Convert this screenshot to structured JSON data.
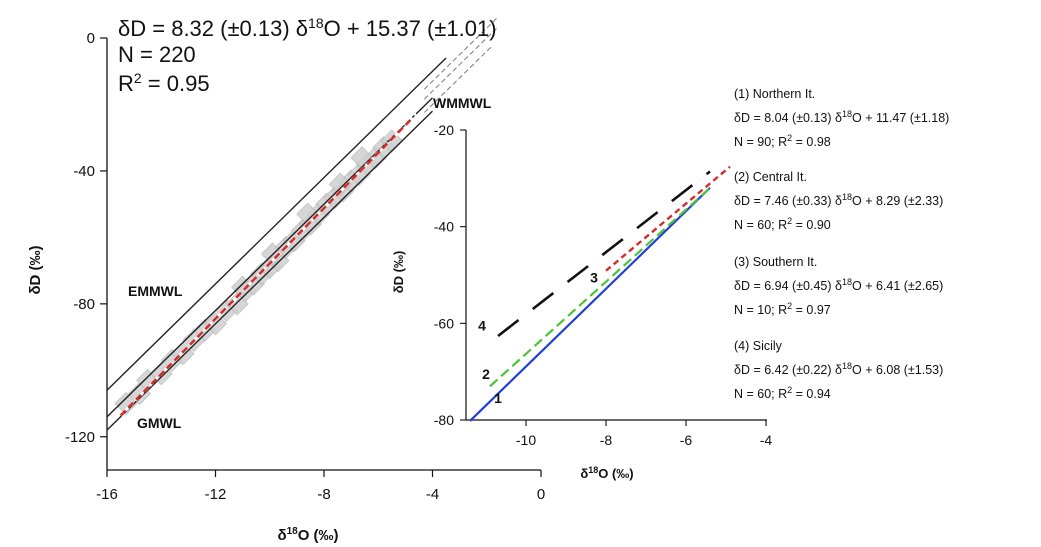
{
  "main": {
    "equation": "δD = 8.32 (±0.13) δ18O + 15.37 (±1.01)",
    "n": "N = 220",
    "r2": "R2 = 0.95",
    "line_labels": {
      "emmwl": "EMMWL",
      "gmwl": "GMWL",
      "wmmwl": "WMMWL"
    },
    "xlabel": "δ18O (‰)",
    "ylabel": "δD (‰)",
    "xticks": [
      "-16",
      "-12",
      "-8",
      "-4",
      "0"
    ],
    "yticks": [
      "0",
      "-40",
      "-80",
      "-120"
    ]
  },
  "inset": {
    "xlabel": "δ18O (‰)",
    "ylabel": "δD (‰)",
    "xticks": [
      "-10",
      "-8",
      "-6",
      "-4"
    ],
    "yticks": [
      "-20",
      "-40",
      "-60",
      "-80"
    ],
    "line_numbers": [
      "1",
      "2",
      "3",
      "4"
    ]
  },
  "legend": [
    {
      "title": "(1) Northern It.",
      "eq": "δD = 8.04 (±0.13) δ18O + 11.47 (±1.18)",
      "stats": "N = 90; R2 = 0.98"
    },
    {
      "title": "(2) Central It.",
      "eq": "δD = 7.46 (±0.33) δ18O + 8.29 (±2.33)",
      "stats": "N = 60; R2 = 0.90"
    },
    {
      "title": "(3) Southern It.",
      "eq": "δD = 6.94 (±0.45) δ18O + 6.41 (±2.65)",
      "stats": "N = 10; R2 = 0.97"
    },
    {
      "title": "(4) Sicily",
      "eq": "δD = 6.42 (±0.22) δ18O + 6.08 (±1.53)",
      "stats": "N = 60; R2 = 0.94"
    }
  ],
  "colors": {
    "northern": "#1f3fd6",
    "central": "#4cc23a",
    "southern": "#d62b2b",
    "sicily": "#111111",
    "points": "#cfcfcf",
    "lines": "#222222"
  },
  "chart_data": [
    {
      "type": "scatter",
      "xlabel": "δ18O (‰)",
      "ylabel": "δD (‰)",
      "xlim": [
        -16,
        0
      ],
      "ylim": [
        -130,
        0
      ],
      "grid": false,
      "series": [
        {
          "name": "",
          "x": [
            -15.3,
            -14.8,
            -14.5,
            -14.0,
            -13.6,
            -13.2,
            -12.8,
            -12.4,
            -12.0,
            -11.6,
            -11.2,
            -10.9,
            -10.6,
            -10.3,
            -10.0,
            -9.7,
            -9.4,
            -9.1,
            -8.8,
            -8.5,
            -8.2,
            -7.9,
            -7.6,
            -7.3,
            -7.0,
            -6.7,
            -6.4,
            -6.1,
            -5.8,
            -5.5,
            -11.0,
            -9.9,
            -8.6,
            -7.4,
            -6.6
          ],
          "y": [
            -110,
            -107,
            -103,
            -101,
            -97,
            -95,
            -91,
            -88,
            -86,
            -82,
            -80,
            -76,
            -74,
            -71,
            -69,
            -67,
            -63,
            -61,
            -58,
            -56,
            -53,
            -50,
            -48,
            -46,
            -43,
            -41,
            -38,
            -36,
            -33,
            -31,
            -75,
            -65,
            -53,
            -44,
            -36
          ]
        }
      ],
      "lines": [
        {
          "name": "EMMWL",
          "slope": 8,
          "intercept": 22,
          "x": [
            -16,
            -4
          ]
        },
        {
          "name": "GMWL",
          "slope": 8,
          "intercept": 10,
          "x": [
            -16,
            -4
          ]
        },
        {
          "name": "WMMWL",
          "slope": 8,
          "intercept": 14,
          "x": [
            -16,
            -4
          ]
        },
        {
          "name": "",
          "slope": 8.32,
          "intercept": 15.37,
          "x": [
            -15.5,
            -5
          ]
        }
      ]
    },
    {
      "type": "line",
      "xlabel": "δ18O (‰)",
      "ylabel": "δD (‰)",
      "xlim": [
        -11.5,
        -4
      ],
      "ylim": [
        -80,
        -20
      ],
      "series": [
        {
          "name": "1",
          "slope": 8.04,
          "intercept": 11.47,
          "x": [
            -11.4,
            -5.4
          ]
        },
        {
          "name": "2",
          "slope": 7.46,
          "intercept": 8.29,
          "x": [
            -10.9,
            -5.4
          ]
        },
        {
          "name": "3",
          "slope": 6.94,
          "intercept": 6.41,
          "x": [
            -8.0,
            -4.9
          ]
        },
        {
          "name": "4",
          "slope": 6.42,
          "intercept": 6.08,
          "x": [
            -10.7,
            -5.4
          ]
        }
      ]
    }
  ]
}
